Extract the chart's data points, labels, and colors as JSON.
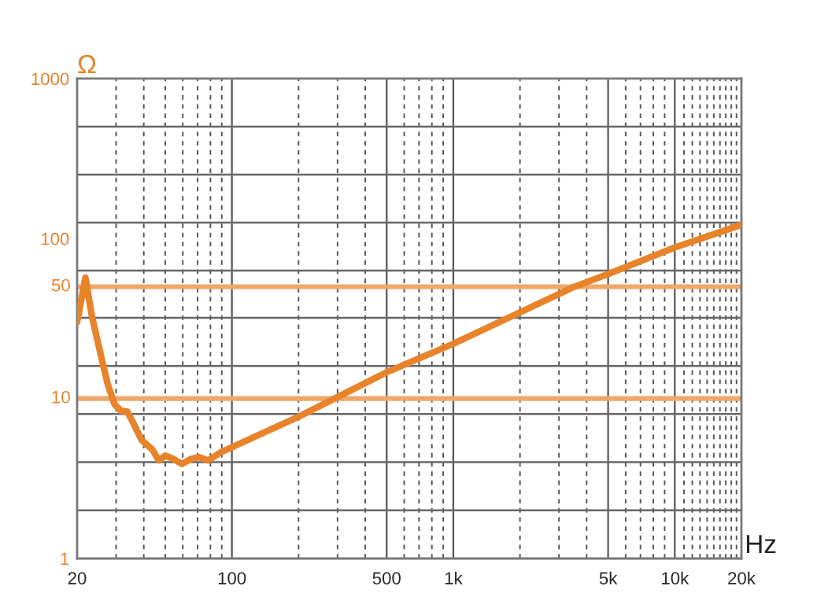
{
  "chart_data": {
    "type": "line",
    "xlabel": "Hz",
    "ylabel": "Ω",
    "log": "xy",
    "grid": true,
    "marker": "none",
    "line_style": "solid",
    "series": [
      {
        "color": "#e8832a",
        "x": [
          20,
          21.8,
          23.3,
          25.3,
          27.4,
          29.5,
          31.5,
          33.7,
          36.1,
          39.1,
          43.7,
          46.8,
          50,
          54.3,
          59.3,
          65.6,
          71.3,
          78.2,
          88.7,
          200,
          500,
          1000,
          3520,
          5000,
          10000,
          20000
        ],
        "values": [
          30,
          57,
          33,
          20,
          12.5,
          9.2,
          8.4,
          8.3,
          6.9,
          5.5,
          4.8,
          4.1,
          4.4,
          4.2,
          3.9,
          4.2,
          4.3,
          4.1,
          4.6,
          7.7,
          14.6,
          22,
          50,
          60,
          88,
          122
        ]
      }
    ],
    "xlim": [
      20,
      20000
    ],
    "ylim": [
      1,
      1000
    ],
    "xticks": [
      20,
      {
        "value": 30,
        "label": null
      },
      {
        "value": 40,
        "label": null
      },
      {
        "value": 50,
        "label": null
      },
      {
        "value": 60,
        "label": null
      },
      {
        "value": 70,
        "label": null
      },
      {
        "value": 80,
        "label": null
      },
      {
        "value": 90,
        "label": null
      },
      100,
      {
        "value": 200,
        "label": null
      },
      {
        "value": 300,
        "label": null
      },
      {
        "value": 400,
        "label": null
      },
      500,
      {
        "value": 600,
        "label": null
      },
      {
        "value": 700,
        "label": null
      },
      {
        "value": 800,
        "label": null
      },
      {
        "value": 900,
        "label": null
      },
      {
        "value": 1000,
        "label": "1k"
      },
      {
        "value": 2000,
        "label": null
      },
      {
        "value": 3000,
        "label": null
      },
      {
        "value": 4000,
        "label": null
      },
      {
        "value": 5000,
        "label": "5k"
      },
      {
        "value": 6000,
        "label": null
      },
      {
        "value": 7000,
        "label": null
      },
      {
        "value": 8000,
        "label": null
      },
      {
        "value": 9000,
        "label": null
      },
      {
        "value": 10000,
        "label": "10k"
      },
      {
        "value": 11000,
        "label": null
      },
      {
        "value": 12000,
        "label": null
      },
      {
        "value": 13000,
        "label": null
      },
      {
        "value": 14000,
        "label": null
      },
      {
        "value": 15000,
        "label": null
      },
      {
        "value": 16000,
        "label": null
      },
      {
        "value": 17000,
        "label": null
      },
      {
        "value": 18000,
        "label": null
      },
      {
        "value": 19000,
        "label": null
      },
      {
        "value": 20000,
        "label": "20k"
      }
    ],
    "yticks": [
      1,
      {
        "value": 2,
        "label": null
      },
      {
        "value": 4,
        "label": null
      },
      {
        "value": 8,
        "label": null
      },
      {
        "value": 16,
        "label": null
      },
      {
        "value": 32,
        "label": null
      },
      {
        "value": 63,
        "label": null
      },
      100,
      {
        "value": 126,
        "label": null
      },
      {
        "value": 251,
        "label": null
      },
      {
        "value": 501,
        "label": null
      },
      1000
    ],
    "ref_lines": [
      {
        "axis": "y",
        "value": 50,
        "label": "50",
        "color": "#f0a868"
      },
      {
        "axis": "y",
        "value": 10,
        "label": "10",
        "color": "#f0a868"
      }
    ]
  }
}
